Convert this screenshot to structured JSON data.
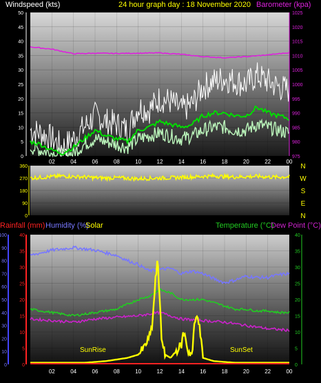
{
  "header": {
    "windspeed_label": "Windspeed (kts)",
    "title": "24 hour graph day : 18 November 2020",
    "barometer_label": "Barometer (kpa)"
  },
  "bottom_header": {
    "rainfall_label": "Rainfall (mm)",
    "humidity_label": "Humidity (%)",
    "solar_label": "Solar",
    "temperature_label": "Temperature (°C)",
    "dewpoint_label": "Dew Point (°C)"
  },
  "compass": [
    "N",
    "W",
    "S",
    "E",
    "N"
  ],
  "colors": {
    "wind_gust": "#ffffff",
    "wind_avg": "#00dd00",
    "wind_light": "#bbf5bb",
    "barometer": "#dd22dd",
    "direction": "#ffff00",
    "humidity": "#7777ff",
    "temperature": "#22cc22",
    "dewpoint": "#cc22cc",
    "solar": "#ffff00",
    "rainfall": "#ff2222"
  },
  "chart_data": [
    {
      "type": "line",
      "name": "wind-baro",
      "x_ticks": [
        "02",
        "04",
        "06",
        "08",
        "10",
        "12",
        "14",
        "16",
        "18",
        "20",
        "22",
        "00"
      ],
      "y_left_ticks": [
        "0",
        "5",
        "10",
        "15",
        "20",
        "25",
        "30",
        "35",
        "40",
        "45",
        "50"
      ],
      "ylim_left": [
        0,
        50
      ],
      "y_right_ticks": [
        "975",
        "980",
        "985",
        "990",
        "995",
        "1000",
        "1005",
        "1010",
        "1015",
        "1020",
        "1025"
      ],
      "ylim_right": [
        975,
        1025
      ],
      "xlim": [
        0,
        24
      ],
      "series": [
        {
          "key": "gust",
          "axis": "left",
          "x": [
            0,
            1,
            2,
            3,
            4,
            5,
            6,
            7,
            8,
            9,
            10,
            11,
            12,
            13,
            14,
            15,
            16,
            17,
            18,
            19,
            20,
            21,
            22,
            23,
            24
          ],
          "values": [
            9,
            8,
            6,
            3,
            6,
            10,
            14,
            12,
            11,
            9,
            17,
            16,
            20,
            19,
            16,
            18,
            24,
            26,
            27,
            26,
            25,
            28,
            26,
            24,
            23
          ]
        },
        {
          "key": "avg",
          "axis": "left",
          "x": [
            0,
            1,
            2,
            3,
            4,
            5,
            6,
            7,
            8,
            9,
            10,
            11,
            12,
            13,
            14,
            15,
            16,
            17,
            18,
            19,
            20,
            21,
            22,
            23,
            24
          ],
          "values": [
            5,
            4,
            2,
            1,
            3,
            6,
            9,
            7,
            6,
            5,
            9,
            10,
            12,
            11,
            10,
            11,
            14,
            15,
            15,
            14,
            14,
            17,
            15,
            14,
            13
          ]
        },
        {
          "key": "light",
          "axis": "left",
          "x": [
            0,
            1,
            2,
            3,
            4,
            5,
            6,
            7,
            8,
            9,
            10,
            11,
            12,
            13,
            14,
            15,
            16,
            17,
            18,
            19,
            20,
            21,
            22,
            23,
            24
          ],
          "values": [
            3,
            2,
            1,
            0,
            1,
            4,
            6,
            5,
            4,
            3,
            6,
            7,
            8,
            7,
            6,
            7,
            9,
            10,
            10,
            9,
            9,
            11,
            10,
            9,
            8
          ]
        },
        {
          "key": "baro",
          "axis": "right",
          "x": [
            0,
            2,
            4,
            6,
            8,
            10,
            12,
            14,
            16,
            18,
            20,
            22,
            24
          ],
          "values": [
            1013,
            1012.2,
            1010.6,
            1010.8,
            1010.7,
            1010.8,
            1010.9,
            1010.4,
            1009.6,
            1009.2,
            1009.6,
            1010.2,
            1011
          ]
        }
      ]
    },
    {
      "type": "line",
      "name": "direction",
      "x_ticks": [],
      "y_ticks": [
        "0",
        "90",
        "180",
        "270",
        "360"
      ],
      "ylim": [
        0,
        360
      ],
      "xlim": [
        0,
        24
      ],
      "series": [
        {
          "key": "dir",
          "x": [
            0,
            1,
            2,
            3,
            4,
            5,
            6,
            7,
            8,
            9,
            10,
            11,
            12,
            13,
            14,
            15,
            16,
            17,
            18,
            19,
            20,
            21,
            22,
            23,
            24
          ],
          "values": [
            270,
            275,
            280,
            285,
            280,
            278,
            272,
            270,
            272,
            268,
            265,
            268,
            270,
            272,
            275,
            278,
            282,
            285,
            280,
            278,
            280,
            282,
            278,
            276,
            280
          ]
        }
      ]
    },
    {
      "type": "line",
      "name": "temp-humidity",
      "x_ticks": [
        "02",
        "04",
        "06",
        "08",
        "10",
        "12",
        "14",
        "16",
        "18",
        "20",
        "22",
        "00"
      ],
      "y_left_ticks": [
        "0",
        "10",
        "20",
        "30",
        "40",
        "50",
        "60",
        "70",
        "80",
        "90",
        "100"
      ],
      "ylim_left": [
        0,
        100
      ],
      "y_inner_ticks": [
        "0",
        "5",
        "10",
        "15",
        "20",
        "25",
        "30",
        "35",
        "40"
      ],
      "ylim_inner": [
        0,
        40
      ],
      "y_right_ticks": [
        "0",
        "5",
        "10",
        "15",
        "20",
        "25",
        "30",
        "35",
        "40"
      ],
      "ylim_right": [
        0,
        40
      ],
      "xlim": [
        0,
        24
      ],
      "annotations": [
        "SunRise",
        "SunSet"
      ],
      "series": [
        {
          "key": "humidity",
          "axis": "left",
          "x": [
            0,
            2,
            4,
            6,
            7,
            8,
            9,
            10,
            11,
            12,
            13,
            14,
            15,
            16,
            17,
            18,
            19,
            20,
            21,
            22,
            23,
            24
          ],
          "values": [
            84,
            88,
            90,
            88,
            86,
            84,
            80,
            77,
            72,
            73,
            74,
            70,
            72,
            70,
            66,
            63,
            65,
            68,
            67,
            67,
            69,
            70
          ]
        },
        {
          "key": "temperature",
          "axis": "right",
          "x": [
            0,
            2,
            4,
            6,
            8,
            10,
            11,
            12,
            13,
            14,
            15,
            16,
            17,
            18,
            19,
            20,
            21,
            22,
            23,
            24
          ],
          "values": [
            17,
            16,
            15,
            16,
            17,
            20,
            21,
            23,
            22,
            20,
            20,
            20,
            19,
            18,
            17,
            17,
            16.5,
            16.5,
            16,
            16
          ]
        },
        {
          "key": "dewpoint",
          "axis": "right",
          "x": [
            0,
            2,
            4,
            6,
            8,
            10,
            12,
            14,
            16,
            18,
            20,
            22,
            24
          ],
          "values": [
            14,
            13.5,
            13,
            14,
            14.5,
            15,
            16,
            14,
            13.5,
            13,
            12,
            11,
            10.5
          ]
        },
        {
          "key": "solar",
          "axis": "right",
          "x": [
            0,
            5,
            7,
            8,
            9,
            10,
            10.5,
            11,
            11.3,
            11.6,
            11.8,
            12,
            12.2,
            12.5,
            13,
            13.5,
            14,
            14.2,
            14.4,
            14.6,
            15,
            15.2,
            15.5,
            15.8,
            16,
            17,
            19,
            20,
            24
          ],
          "values": [
            0.5,
            0.5,
            1,
            1.5,
            2,
            3,
            5,
            8,
            12,
            26,
            32,
            20,
            6,
            3,
            2,
            4,
            6,
            10,
            8,
            4,
            3,
            12,
            16,
            8,
            2,
            1,
            0.5,
            0.5,
            0.5
          ]
        },
        {
          "key": "rainfall",
          "axis": "inner",
          "x": [
            0,
            24
          ],
          "values": [
            0,
            0
          ]
        }
      ]
    }
  ]
}
